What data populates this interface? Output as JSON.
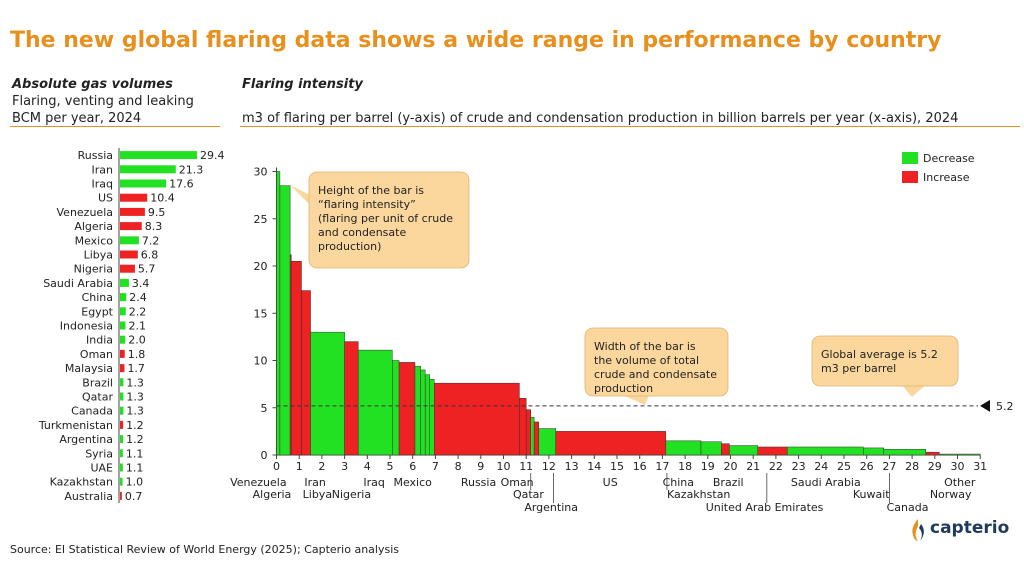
{
  "title": "The new global flaring data shows a wide range in performance by country",
  "left_panel": {
    "heading": "Absolute gas volumes",
    "subtitle_line1": "Flaring, venting and leaking",
    "subtitle_line2": "BCM per year, 2024"
  },
  "right_panel": {
    "heading": "Flaring intensity",
    "subtitle": "m3 of flaring per barrel (y-axis) of crude and condensation production in billion barrels per year (x-axis), 2024"
  },
  "source": "Source:  EI Statistical Review of World Energy (2025); Capterio analysis",
  "logo_text": "capterio",
  "colors": {
    "decrease": "#22e022",
    "increase": "#ee2222",
    "accent": "#e8901e",
    "callout_bg": "#fbd79e"
  },
  "chart_data": [
    {
      "type": "bar",
      "orientation": "horizontal",
      "title": "Absolute gas volumes",
      "unit": "BCM per year, 2024",
      "categories": [
        "Russia",
        "Iran",
        "Iraq",
        "US",
        "Venezuela",
        "Algeria",
        "Mexico",
        "Libya",
        "Nigeria",
        "Saudi Arabia",
        "China",
        "Egypt",
        "Indonesia",
        "India",
        "Oman",
        "Malaysia",
        "Brazil",
        "Qatar",
        "Canada",
        "Turkmenistan",
        "Argentina",
        "Syria",
        "UAE",
        "Kazakhstan",
        "Australia"
      ],
      "values": [
        29.4,
        21.3,
        17.6,
        10.4,
        9.5,
        8.3,
        7.2,
        6.8,
        5.7,
        3.4,
        2.4,
        2.2,
        2.1,
        2.0,
        1.8,
        1.7,
        1.3,
        1.3,
        1.3,
        1.2,
        1.2,
        1.1,
        1.1,
        1.0,
        0.7
      ],
      "value_labels": [
        "29.4",
        "21.3",
        "17.6",
        "10.4",
        "9.5",
        "8.3",
        "7.2",
        "6.8",
        "5.7",
        "3.4",
        "2.4",
        "2.2",
        "2.1",
        "2.0",
        "1.8",
        "1.7",
        "1.3",
        "1.3",
        "1.3",
        "1.2",
        "1.2",
        "1.1",
        "1.1",
        "1.0",
        "0.7"
      ],
      "trend": [
        "decrease",
        "decrease",
        "decrease",
        "increase",
        "increase",
        "increase",
        "decrease",
        "increase",
        "increase",
        "decrease",
        "decrease",
        "decrease",
        "decrease",
        "decrease",
        "increase",
        "increase",
        "decrease",
        "decrease",
        "decrease",
        "increase",
        "decrease",
        "decrease",
        "decrease",
        "decrease",
        "increase"
      ]
    },
    {
      "type": "variable-width bar",
      "title": "Flaring intensity",
      "xlabel": "crude and condensation production in billion barrels per year",
      "ylabel": "m3 of flaring per barrel",
      "xlim": [
        0,
        31
      ],
      "ylim": [
        0,
        30
      ],
      "x_ticks": [
        "0",
        "1",
        "2",
        "3",
        "4",
        "5",
        "6",
        "7",
        "8",
        "9",
        "10",
        "11",
        "12",
        "13",
        "14",
        "15",
        "16",
        "17",
        "18",
        "19",
        "20",
        "21",
        "22",
        "23",
        "24",
        "25",
        "26",
        "27",
        "28",
        "29",
        "30",
        "31"
      ],
      "y_ticks": [
        "0",
        "5",
        "10",
        "15",
        "20",
        "25",
        "30"
      ],
      "series": [
        {
          "x0": 0.0,
          "x1": 0.15,
          "y": 30.0,
          "trend": "decrease"
        },
        {
          "x0": 0.15,
          "x1": 0.6,
          "y": 28.5,
          "trend": "decrease"
        },
        {
          "x0": 0.6,
          "x1": 0.65,
          "y": 21.2,
          "trend": "increase"
        },
        {
          "x0": 0.65,
          "x1": 1.1,
          "y": 20.5,
          "trend": "increase"
        },
        {
          "x0": 1.1,
          "x1": 1.5,
          "y": 17.4,
          "trend": "increase"
        },
        {
          "x0": 1.5,
          "x1": 3.0,
          "y": 13.0,
          "trend": "decrease"
        },
        {
          "x0": 3.0,
          "x1": 3.6,
          "y": 12.0,
          "trend": "increase"
        },
        {
          "x0": 3.6,
          "x1": 5.1,
          "y": 11.1,
          "trend": "decrease"
        },
        {
          "x0": 5.1,
          "x1": 5.4,
          "y": 10.0,
          "trend": "decrease"
        },
        {
          "x0": 5.4,
          "x1": 6.1,
          "y": 9.8,
          "trend": "increase"
        },
        {
          "x0": 6.1,
          "x1": 6.35,
          "y": 9.4,
          "trend": "decrease"
        },
        {
          "x0": 6.35,
          "x1": 6.55,
          "y": 9.0,
          "trend": "decrease"
        },
        {
          "x0": 6.55,
          "x1": 6.75,
          "y": 8.5,
          "trend": "decrease"
        },
        {
          "x0": 6.75,
          "x1": 6.95,
          "y": 8.0,
          "trend": "decrease"
        },
        {
          "x0": 6.95,
          "x1": 10.7,
          "y": 7.6,
          "trend": "increase"
        },
        {
          "x0": 10.7,
          "x1": 11.0,
          "y": 6.0,
          "trend": "increase"
        },
        {
          "x0": 11.0,
          "x1": 11.2,
          "y": 4.8,
          "trend": "increase"
        },
        {
          "x0": 11.2,
          "x1": 11.35,
          "y": 4.0,
          "trend": "decrease"
        },
        {
          "x0": 11.35,
          "x1": 11.55,
          "y": 3.5,
          "trend": "increase"
        },
        {
          "x0": 11.55,
          "x1": 12.3,
          "y": 2.8,
          "trend": "decrease"
        },
        {
          "x0": 12.3,
          "x1": 17.15,
          "y": 2.5,
          "trend": "increase"
        },
        {
          "x0": 17.15,
          "x1": 18.7,
          "y": 1.5,
          "trend": "decrease"
        },
        {
          "x0": 18.7,
          "x1": 19.6,
          "y": 1.4,
          "trend": "decrease"
        },
        {
          "x0": 19.6,
          "x1": 19.95,
          "y": 1.2,
          "trend": "increase"
        },
        {
          "x0": 19.95,
          "x1": 21.2,
          "y": 1.0,
          "trend": "decrease"
        },
        {
          "x0": 21.2,
          "x1": 22.5,
          "y": 0.85,
          "trend": "increase"
        },
        {
          "x0": 22.5,
          "x1": 25.85,
          "y": 0.85,
          "trend": "decrease"
        },
        {
          "x0": 25.85,
          "x1": 26.75,
          "y": 0.75,
          "trend": "decrease"
        },
        {
          "x0": 26.75,
          "x1": 28.6,
          "y": 0.6,
          "trend": "decrease"
        },
        {
          "x0": 28.6,
          "x1": 29.2,
          "y": 0.3,
          "trend": "increase"
        },
        {
          "x0": 29.2,
          "x1": 31.0,
          "y": 0.1,
          "trend": "decrease"
        }
      ],
      "country_labels_row1": [
        {
          "text": "Venezuela",
          "x": -0.8
        },
        {
          "text": "Iran",
          "x": 1.7
        },
        {
          "text": "Iraq",
          "x": 4.3
        },
        {
          "text": "Mexico",
          "x": 6.0
        },
        {
          "text": "Russia",
          "x": 8.9
        },
        {
          "text": "Oman",
          "x": 10.6
        },
        {
          "text": "US",
          "x": 14.7
        },
        {
          "text": "China",
          "x": 17.7
        },
        {
          "text": "Brazil",
          "x": 19.9
        },
        {
          "text": "Saudi Arabia",
          "x": 24.2
        },
        {
          "text": "Other",
          "x": 30.1
        }
      ],
      "country_labels_row2": [
        {
          "text": "Algeria",
          "x": -0.2
        },
        {
          "text": "Libya",
          "x": 1.8
        },
        {
          "text": "Nigeria",
          "x": 3.3
        },
        {
          "text": "Qatar",
          "x": 11.1
        },
        {
          "text": "Kazakhstan",
          "x": 18.6
        },
        {
          "text": "Kuwait",
          "x": 26.2
        },
        {
          "text": "Norway",
          "x": 29.7
        }
      ],
      "country_labels_row3": [
        {
          "text": "Argentina",
          "x": 12.1
        },
        {
          "text": "United Arab Emirates",
          "x": 21.5
        },
        {
          "text": "Canada",
          "x": 27.8
        }
      ],
      "leader_lines": [
        {
          "x": 12.2,
          "row": 3
        },
        {
          "x": 11.2,
          "row": 2
        },
        {
          "x": 17.2,
          "row": 2
        },
        {
          "x": 21.6,
          "row": 3
        },
        {
          "x": 27.0,
          "row": 3
        }
      ],
      "reference_line": {
        "value": 5.2,
        "label": "5.2"
      },
      "legend": [
        {
          "label": "Decrease",
          "trend": "decrease"
        },
        {
          "label": "Increase",
          "trend": "increase"
        }
      ],
      "annotations": [
        {
          "name": "height-callout",
          "lines": [
            "Height of the bar is",
            "“flaring intensity”",
            "(flaring per unit of crude",
            "and condensate",
            "production)"
          ]
        },
        {
          "name": "width-callout",
          "lines": [
            "Width of the bar is",
            "the volume of total",
            "crude and condensate",
            "production"
          ]
        },
        {
          "name": "average-callout",
          "lines": [
            "Global average is 5.2",
            "m3 per barrel"
          ]
        }
      ]
    }
  ]
}
